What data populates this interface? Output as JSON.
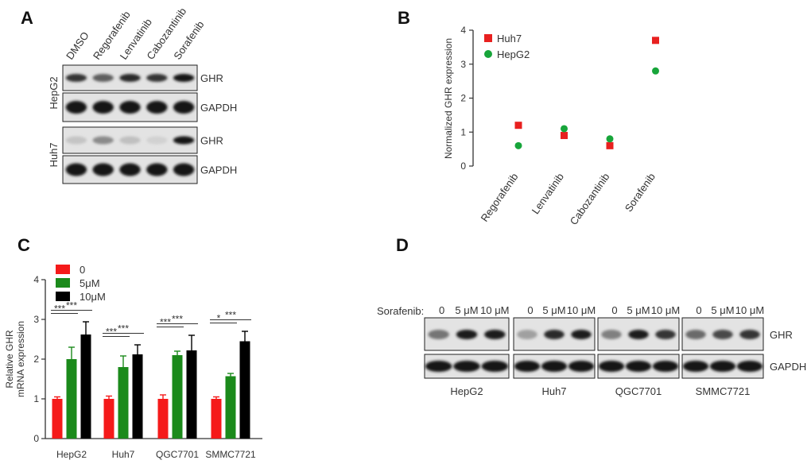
{
  "panels": {
    "a": {
      "letter": "A",
      "lanes": [
        "DMSO",
        "Regorafenib",
        "Lenvatinib",
        "Cabozantinib",
        "Sorafenib"
      ],
      "cell_lines": [
        "HepG2",
        "Huh7"
      ],
      "protein_labels": [
        "GHR",
        "GAPDH",
        "GHR",
        "GAPDH"
      ],
      "band_intensity": {
        "HepG2_GHR": [
          0.85,
          0.65,
          0.9,
          0.85,
          1.0
        ],
        "HepG2_GAPDH": [
          1,
          1,
          1,
          1,
          1
        ],
        "Huh7_GHR": [
          0.18,
          0.45,
          0.2,
          0.12,
          1.0
        ],
        "Huh7_GAPDH": [
          1,
          1,
          1,
          1,
          1
        ]
      }
    },
    "b": {
      "letter": "B"
    },
    "c": {
      "letter": "C"
    },
    "d": {
      "letter": "D",
      "treatment_label": "Sorafenib:",
      "doses": [
        "0",
        "5 μM",
        "10 μM"
      ],
      "cell_lines": [
        "HepG2",
        "Huh7",
        "QGC7701",
        "SMMC7721"
      ],
      "protein_labels": [
        "GHR",
        "GAPDH"
      ],
      "band_intensity": {
        "GHR": [
          [
            0.55,
            0.95,
            0.95
          ],
          [
            0.35,
            0.9,
            0.95
          ],
          [
            0.5,
            0.95,
            0.85
          ],
          [
            0.6,
            0.75,
            0.85
          ]
        ],
        "GAPDH": [
          [
            1,
            1,
            1
          ],
          [
            1,
            1,
            1
          ],
          [
            1,
            1,
            1
          ],
          [
            1,
            1,
            1
          ]
        ]
      }
    }
  },
  "chart_data": [
    {
      "type": "scatter",
      "panel": "B",
      "categories": [
        "Regorafenib",
        "Lenvatinib",
        "Cabozantinib",
        "Sorafenib"
      ],
      "ylabel": "Normalized GHR expression",
      "ylim": [
        0,
        4
      ],
      "yticks": [
        "0",
        "1",
        "2",
        "3",
        "4"
      ],
      "series": [
        {
          "name": "Huh7",
          "color": "#e8201f",
          "marker": "square",
          "values": [
            1.2,
            0.9,
            0.6,
            3.7
          ]
        },
        {
          "name": "HepG2",
          "color": "#17a53a",
          "marker": "circle",
          "values": [
            0.6,
            1.1,
            0.8,
            2.8
          ]
        }
      ],
      "legend": "top-left"
    },
    {
      "type": "bar",
      "panel": "C",
      "categories": [
        "HepG2",
        "Huh7",
        "QGC7701",
        "SMMC7721"
      ],
      "ylabel": "Relative GHR mRNA expression",
      "ylabel_lines": [
        "Relative GHR",
        "mRNA expression"
      ],
      "ylim": [
        0,
        4
      ],
      "yticks": [
        "0",
        "1",
        "2",
        "3",
        "4"
      ],
      "series": [
        {
          "name": "0",
          "color": "#f51a1a",
          "values": [
            1.0,
            1.0,
            1.0,
            1.0
          ],
          "errors": [
            0.05,
            0.07,
            0.1,
            0.05
          ]
        },
        {
          "name": "5μM",
          "color": "#1b8a1b",
          "values": [
            2.0,
            1.8,
            2.1,
            1.57
          ],
          "errors": [
            0.3,
            0.28,
            0.1,
            0.07
          ]
        },
        {
          "name": "10μM",
          "color": "#000000",
          "values": [
            2.62,
            2.12,
            2.22,
            2.45
          ],
          "errors": [
            0.32,
            0.24,
            0.38,
            0.25
          ]
        }
      ],
      "significance": [
        {
          "group": "HepG2",
          "compare": [
            "0",
            "5μM"
          ],
          "label": "***"
        },
        {
          "group": "HepG2",
          "compare": [
            "0",
            "10μM"
          ],
          "label": "***"
        },
        {
          "group": "Huh7",
          "compare": [
            "0",
            "5μM"
          ],
          "label": "***"
        },
        {
          "group": "Huh7",
          "compare": [
            "0",
            "10μM"
          ],
          "label": "***"
        },
        {
          "group": "QGC7701",
          "compare": [
            "0",
            "5μM"
          ],
          "label": "***"
        },
        {
          "group": "QGC7701",
          "compare": [
            "0",
            "10μM"
          ],
          "label": "***"
        },
        {
          "group": "SMMC7721",
          "compare": [
            "0",
            "5μM"
          ],
          "label": "*"
        },
        {
          "group": "SMMC7721",
          "compare": [
            "0",
            "10μM"
          ],
          "label": "***"
        }
      ],
      "legend": "top-left"
    }
  ]
}
